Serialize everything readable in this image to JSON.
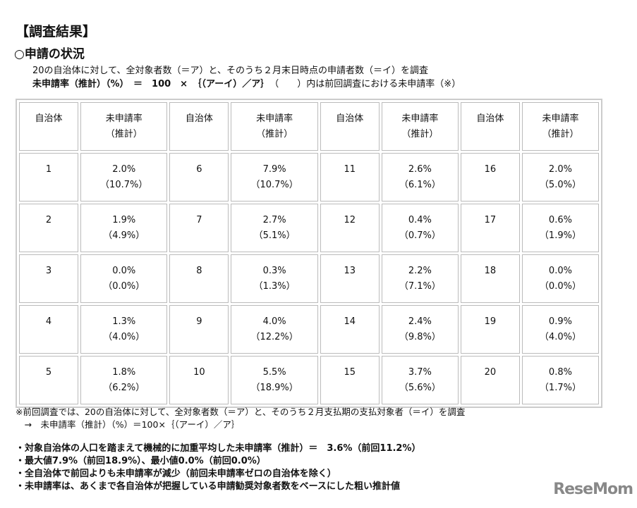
{
  "title": "【調査結果】",
  "section": "○申請の状況",
  "line1": "20の自治体に対して、全対象者数（＝ア）と、そのうち２月末日時点の申請者数（＝イ）を調査",
  "formula": "未申請率（推計）（%）　＝　100　×　｛（アーイ）／ア｝",
  "formula_note": "（　　）内は前回調査における未申請率（※）",
  "table": {
    "headers": {
      "municipality": "自治体",
      "rate": "未申請率",
      "rate_sub": "（推計）"
    },
    "rows": [
      [
        [
          "1",
          "2.0%",
          "（10.7%）"
        ],
        [
          "6",
          "7.9%",
          "（10.7%）"
        ],
        [
          "11",
          "2.6%",
          "（6.1%）"
        ],
        [
          "16",
          "2.0%",
          "（5.0%）"
        ]
      ],
      [
        [
          "2",
          "1.9%",
          "（4.9%）"
        ],
        [
          "7",
          "2.7%",
          "（5.1%）"
        ],
        [
          "12",
          "0.4%",
          "（0.7%）"
        ],
        [
          "17",
          "0.6%",
          "（1.9%）"
        ]
      ],
      [
        [
          "3",
          "0.0%",
          "（0.0%）"
        ],
        [
          "8",
          "0.3%",
          "（1.3%）"
        ],
        [
          "13",
          "2.2%",
          "（7.1%）"
        ],
        [
          "18",
          "0.0%",
          "（0.0%）"
        ]
      ],
      [
        [
          "4",
          "1.3%",
          "（4.0%）"
        ],
        [
          "9",
          "4.0%",
          "（12.2%）"
        ],
        [
          "14",
          "2.4%",
          "（9.8%）"
        ],
        [
          "19",
          "0.9%",
          "（4.0%）"
        ]
      ],
      [
        [
          "5",
          "1.8%",
          "（6.2%）"
        ],
        [
          "10",
          "5.5%",
          "（18.9%）"
        ],
        [
          "15",
          "3.7%",
          "（5.6%）"
        ],
        [
          "20",
          "0.8%",
          "（1.7%）"
        ]
      ]
    ]
  },
  "note1": "※前回調査では、20の自治体に対して、全対象者数（＝ア）と、そのうち２月支払期の支払対象者（＝イ）を調査",
  "note2": "　→　未申請率（推計）（%）＝100×｛（アーイ）／ア｝",
  "bullets": [
    "・対象自治体の人口を踏まえて機械的に加重平均した未申請率（推計）＝　3.6%（前回11.2%）",
    "・最大値7.9%（前回18.9%）、最小値0.0%（前回0.0%）",
    "・全自治体で前回よりも未申請率が減少（前回未申請率ゼロの自治体を除く）",
    "・未申請率は、あくまで各自治体が把握している申請勧奨対象者数をベースにした粗い推計値"
  ],
  "logo": "ReseMom"
}
